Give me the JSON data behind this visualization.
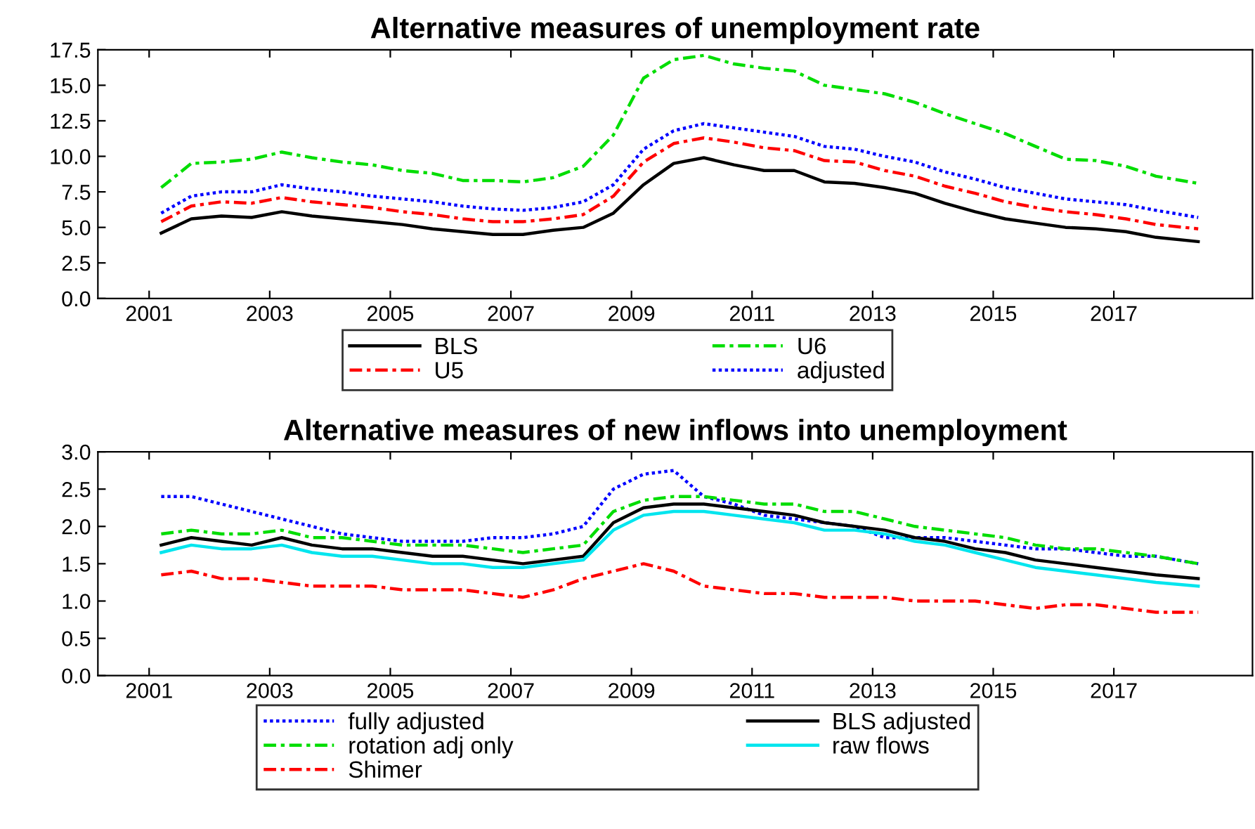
{
  "chart_data": [
    {
      "type": "line",
      "title": "Alternative measures of unemployment rate",
      "x": [
        2001.2,
        2001.7,
        2002.2,
        2002.7,
        2003.2,
        2003.7,
        2004.2,
        2004.7,
        2005.2,
        2005.7,
        2006.2,
        2006.7,
        2007.2,
        2007.7,
        2008.2,
        2008.7,
        2009.2,
        2009.7,
        2010.2,
        2010.7,
        2011.2,
        2011.7,
        2012.2,
        2012.7,
        2013.2,
        2013.7,
        2014.2,
        2014.7,
        2015.2,
        2015.7,
        2016.2,
        2016.7,
        2017.2,
        2017.7,
        2018.4
      ],
      "series": [
        {
          "name": "BLS",
          "color": "#000000",
          "line_style": "solid",
          "values": [
            4.6,
            5.6,
            5.8,
            5.7,
            6.1,
            5.8,
            5.6,
            5.4,
            5.2,
            4.9,
            4.7,
            4.5,
            4.5,
            4.8,
            5.0,
            6.0,
            8.0,
            9.5,
            9.9,
            9.4,
            9.0,
            9.0,
            8.2,
            8.1,
            7.8,
            7.4,
            6.7,
            6.1,
            5.6,
            5.3,
            5.0,
            4.9,
            4.7,
            4.3,
            4.0
          ]
        },
        {
          "name": "U5",
          "color": "#ff0000",
          "line_style": "dashdot",
          "values": [
            5.4,
            6.5,
            6.8,
            6.7,
            7.1,
            6.8,
            6.6,
            6.4,
            6.1,
            5.9,
            5.6,
            5.4,
            5.4,
            5.6,
            5.9,
            7.2,
            9.6,
            10.9,
            11.3,
            11.0,
            10.6,
            10.4,
            9.7,
            9.6,
            9.0,
            8.6,
            7.9,
            7.4,
            6.8,
            6.4,
            6.1,
            5.9,
            5.6,
            5.2,
            4.9
          ]
        },
        {
          "name": "U6",
          "color": "#00dd00",
          "line_style": "dashdot",
          "values": [
            7.8,
            9.5,
            9.6,
            9.8,
            10.3,
            9.9,
            9.6,
            9.4,
            9.0,
            8.8,
            8.3,
            8.3,
            8.2,
            8.5,
            9.3,
            11.5,
            15.5,
            16.8,
            17.1,
            16.5,
            16.2,
            16.0,
            15.0,
            14.7,
            14.4,
            13.8,
            13.0,
            12.3,
            11.6,
            10.7,
            9.8,
            9.7,
            9.3,
            8.6,
            8.1
          ]
        },
        {
          "name": "adjusted",
          "color": "#0000ff",
          "line_style": "dotted",
          "values": [
            6.0,
            7.2,
            7.5,
            7.5,
            8.0,
            7.7,
            7.5,
            7.2,
            7.0,
            6.8,
            6.5,
            6.3,
            6.2,
            6.4,
            6.8,
            8.0,
            10.5,
            11.8,
            12.3,
            12.0,
            11.7,
            11.4,
            10.7,
            10.5,
            10.0,
            9.6,
            8.9,
            8.4,
            7.8,
            7.4,
            7.0,
            6.8,
            6.6,
            6.2,
            5.7
          ]
        }
      ],
      "xlim": [
        2000.15,
        2019.3
      ],
      "xticks": [
        2001,
        2003,
        2005,
        2007,
        2009,
        2011,
        2013,
        2015,
        2017
      ],
      "ylim": [
        0,
        17.5
      ],
      "yticks": [
        {
          "value": 0,
          "label": "0.0"
        },
        2.5,
        {
          "value": 5,
          "label": "5.0"
        },
        7.5,
        {
          "value": 10,
          "label": "10.0"
        },
        12.5,
        {
          "value": 15,
          "label": "15.0"
        },
        17.5
      ],
      "grid": false,
      "legend": "bottom",
      "marker": "none"
    },
    {
      "type": "line",
      "title": "Alternative measures of new inflows into unemployment",
      "x": [
        2001.2,
        2001.7,
        2002.2,
        2002.7,
        2003.2,
        2003.7,
        2004.2,
        2004.7,
        2005.2,
        2005.7,
        2006.2,
        2006.7,
        2007.2,
        2007.7,
        2008.2,
        2008.7,
        2009.2,
        2009.7,
        2010.2,
        2010.7,
        2011.2,
        2011.7,
        2012.2,
        2012.7,
        2013.2,
        2013.7,
        2014.2,
        2014.7,
        2015.2,
        2015.7,
        2016.2,
        2016.7,
        2017.2,
        2017.7,
        2018.4
      ],
      "series": [
        {
          "name": "fully adjusted",
          "color": "#0000ff",
          "line_style": "dotted",
          "values": [
            2.4,
            2.4,
            2.3,
            2.2,
            2.1,
            2.0,
            1.9,
            1.85,
            1.8,
            1.8,
            1.8,
            1.85,
            1.85,
            1.9,
            2.0,
            2.5,
            2.7,
            2.75,
            2.4,
            2.3,
            2.15,
            2.1,
            2.05,
            2.0,
            1.85,
            1.85,
            1.85,
            1.8,
            1.75,
            1.7,
            1.7,
            1.65,
            1.6,
            1.6,
            1.5
          ]
        },
        {
          "name": "rotation adj only",
          "color": "#00dd00",
          "line_style": "dashdot",
          "values": [
            1.9,
            1.95,
            1.9,
            1.9,
            1.95,
            1.85,
            1.85,
            1.8,
            1.75,
            1.75,
            1.75,
            1.7,
            1.65,
            1.7,
            1.75,
            2.2,
            2.35,
            2.4,
            2.4,
            2.35,
            2.3,
            2.3,
            2.2,
            2.2,
            2.1,
            2.0,
            1.95,
            1.9,
            1.85,
            1.75,
            1.7,
            1.7,
            1.65,
            1.6,
            1.5
          ]
        },
        {
          "name": "Shimer",
          "color": "#ff0000",
          "line_style": "dashdot",
          "values": [
            1.35,
            1.4,
            1.3,
            1.3,
            1.25,
            1.2,
            1.2,
            1.2,
            1.15,
            1.15,
            1.15,
            1.1,
            1.05,
            1.15,
            1.3,
            1.4,
            1.5,
            1.4,
            1.2,
            1.15,
            1.1,
            1.1,
            1.05,
            1.05,
            1.05,
            1.0,
            1.0,
            1.0,
            0.95,
            0.9,
            0.95,
            0.95,
            0.9,
            0.85,
            0.85
          ]
        },
        {
          "name": "BLS adjusted",
          "color": "#000000",
          "line_style": "solid",
          "values": [
            1.75,
            1.85,
            1.8,
            1.75,
            1.85,
            1.75,
            1.7,
            1.7,
            1.65,
            1.6,
            1.6,
            1.55,
            1.5,
            1.55,
            1.6,
            2.05,
            2.25,
            2.3,
            2.3,
            2.25,
            2.2,
            2.15,
            2.05,
            2.0,
            1.95,
            1.85,
            1.8,
            1.7,
            1.65,
            1.55,
            1.5,
            1.45,
            1.4,
            1.35,
            1.3
          ]
        },
        {
          "name": "raw flows",
          "color": "#00e5ee",
          "line_style": "solid",
          "values": [
            1.65,
            1.75,
            1.7,
            1.7,
            1.75,
            1.65,
            1.6,
            1.6,
            1.55,
            1.5,
            1.5,
            1.45,
            1.45,
            1.5,
            1.55,
            1.95,
            2.15,
            2.2,
            2.2,
            2.15,
            2.1,
            2.05,
            1.95,
            1.95,
            1.9,
            1.8,
            1.75,
            1.65,
            1.55,
            1.45,
            1.4,
            1.35,
            1.3,
            1.25,
            1.2
          ]
        }
      ],
      "xlim": [
        2000.15,
        2019.3
      ],
      "xticks": [
        2001,
        2003,
        2005,
        2007,
        2009,
        2011,
        2013,
        2015,
        2017
      ],
      "ylim": [
        0,
        3
      ],
      "yticks": [
        {
          "value": 0,
          "label": "0.0"
        },
        0.5,
        {
          "value": 1,
          "label": "1.0"
        },
        1.5,
        {
          "value": 2,
          "label": "2.0"
        },
        2.5,
        {
          "value": 3,
          "label": "3.0"
        }
      ],
      "grid": false,
      "legend": "bottom",
      "marker": "none"
    }
  ]
}
